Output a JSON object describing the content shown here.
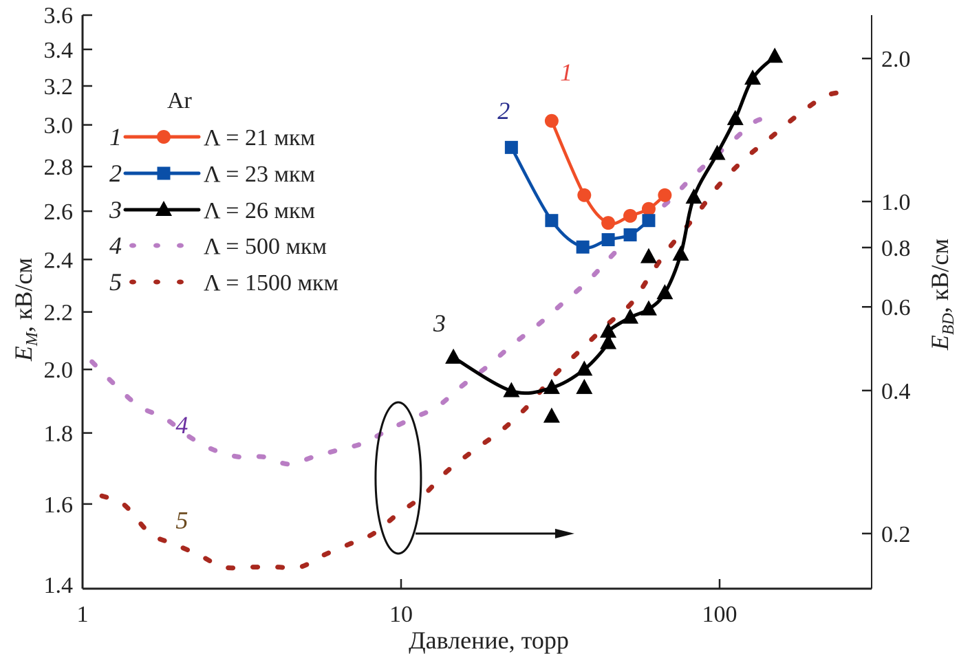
{
  "chart_data": {
    "type": "line",
    "title": "",
    "legend_title": "Ar",
    "legend_position": "top-left",
    "grid": false,
    "x_axis": {
      "label": "Давление, торр",
      "scale": "log",
      "range": [
        1,
        300
      ],
      "ticks": [
        1,
        10,
        100
      ],
      "tick_labels": [
        "1",
        "10",
        "100"
      ]
    },
    "y_axis_left": {
      "label_main": "E",
      "label_sub": "M",
      "label_unit": ", кВ/см",
      "scale": "log",
      "range": [
        1.4,
        3.6
      ],
      "ticks": [
        1.4,
        1.6,
        1.8,
        2.0,
        2.2,
        2.4,
        2.6,
        2.8,
        3.0,
        3.2,
        3.4,
        3.6
      ],
      "tick_labels": [
        "1.4",
        "1.6",
        "1.8",
        "2.0",
        "2.2",
        "2.4",
        "2.6",
        "2.8",
        "3.0",
        "3.2",
        "3.4",
        "3.6"
      ]
    },
    "y_axis_right": {
      "label_main": "E",
      "label_sub": "BD",
      "label_unit": ", кВ/см",
      "scale": "log",
      "range": [
        0.15,
        2.3
      ],
      "ticks": [
        0.2,
        0.4,
        0.6,
        0.8,
        1.0,
        2.0
      ],
      "tick_labels": [
        "0.2",
        "0.4",
        "0.6",
        "0.8",
        "1.0",
        "2.0"
      ]
    },
    "series": [
      {
        "id": "1",
        "name": "Λ = 21 мкм",
        "axis": "left",
        "color": "#f04e27",
        "marker": "circle",
        "style": "solid",
        "x": [
          29.7,
          37.6,
          44.7,
          52.4,
          59.9,
          67.3
        ],
        "y": [
          3.02,
          2.67,
          2.55,
          2.58,
          2.61,
          2.67
        ]
      },
      {
        "id": "2",
        "name": "Λ = 23 мкм",
        "axis": "left",
        "color": "#0a4fa8",
        "marker": "square",
        "style": "solid",
        "x": [
          22.2,
          29.7,
          37.2,
          44.7,
          52.4,
          59.9
        ],
        "y": [
          2.89,
          2.56,
          2.45,
          2.48,
          2.5,
          2.56
        ]
      },
      {
        "id": "3",
        "name": "Λ = 26 мкм",
        "axis": "left",
        "color": "#000000",
        "marker": "triangle",
        "style": "solid",
        "x": [
          14.6,
          22.2,
          29.7,
          37.6,
          44.7,
          44.7,
          52.4,
          59.9,
          67.3,
          75.5,
          83.0,
          98.3,
          112,
          127,
          149
        ],
        "y": [
          2.04,
          1.93,
          1.94,
          2.0,
          2.09,
          2.13,
          2.18,
          2.21,
          2.27,
          2.42,
          2.66,
          2.86,
          3.03,
          3.24,
          3.36
        ],
        "extra_points": {
          "x": [
            29.7,
            37.6,
            59.9
          ],
          "y": [
            1.85,
            1.94,
            2.41
          ]
        }
      },
      {
        "id": "4",
        "name": "Λ = 500 мкм",
        "axis": "right",
        "color": "#b97dc4",
        "marker": "none",
        "style": "dotted",
        "x": [
          1.07,
          1.27,
          1.51,
          1.81,
          2.16,
          2.58,
          3.09,
          3.7,
          4.44,
          5.31,
          6.36,
          7.61,
          9.08,
          10.9,
          13.0,
          15.6,
          18.7,
          22.4,
          26.9,
          32.1,
          38.6,
          46.0,
          57.7,
          70.2,
          83.7,
          111,
          131,
          154
        ],
        "y": [
          0.46,
          0.41,
          0.37,
          0.35,
          0.32,
          0.3,
          0.29,
          0.29,
          0.28,
          0.29,
          0.3,
          0.31,
          0.33,
          0.35,
          0.37,
          0.41,
          0.45,
          0.5,
          0.55,
          0.61,
          0.68,
          0.77,
          0.9,
          1.01,
          1.14,
          1.35,
          1.48,
          1.5
        ]
      },
      {
        "id": "5",
        "name": "Λ = 1500 мкм",
        "axis": "right",
        "color": "#a8281e",
        "marker": "none",
        "style": "dotted",
        "x": [
          1.15,
          1.35,
          1.63,
          1.94,
          2.33,
          2.77,
          3.33,
          4.03,
          4.82,
          5.7,
          6.88,
          8.2,
          9.77,
          11.7,
          13.9,
          17.0,
          20.7,
          24.9,
          30.2,
          37.0,
          44.3,
          52.8,
          60.6,
          68.6,
          83.7,
          99.2,
          120,
          144,
          176,
          216,
          254
        ],
        "y": [
          0.24,
          0.23,
          0.2,
          0.19,
          0.18,
          0.17,
          0.17,
          0.17,
          0.17,
          0.18,
          0.19,
          0.2,
          0.22,
          0.24,
          0.27,
          0.3,
          0.33,
          0.37,
          0.43,
          0.49,
          0.55,
          0.61,
          0.7,
          0.79,
          0.93,
          1.08,
          1.23,
          1.36,
          1.52,
          1.67,
          1.7
        ]
      }
    ],
    "curve_labels": [
      {
        "text": "1",
        "color": "#e8453c",
        "x": 33.0,
        "axis": "left",
        "y": 3.23
      },
      {
        "text": "2",
        "color": "#2a2f8f",
        "x": 21.0,
        "axis": "left",
        "y": 3.03
      },
      {
        "text": "3",
        "color": "#222222",
        "x": 13.2,
        "axis": "left",
        "y": 2.13
      },
      {
        "text": "4",
        "color": "#6a2fa0",
        "x": 2.05,
        "axis": "right",
        "y": 0.325
      },
      {
        "text": "5",
        "color": "#6b4a1e",
        "x": 2.05,
        "axis": "right",
        "y": 0.205
      }
    ],
    "annotation": {
      "type": "ellipse-with-arrow",
      "description": "oval around curves 4 and 5 at ~10 торр with arrow pointing to right axis",
      "center_x": 9.8,
      "arrow_to_x": 35,
      "arrow_y_right_axis": 0.2
    }
  }
}
